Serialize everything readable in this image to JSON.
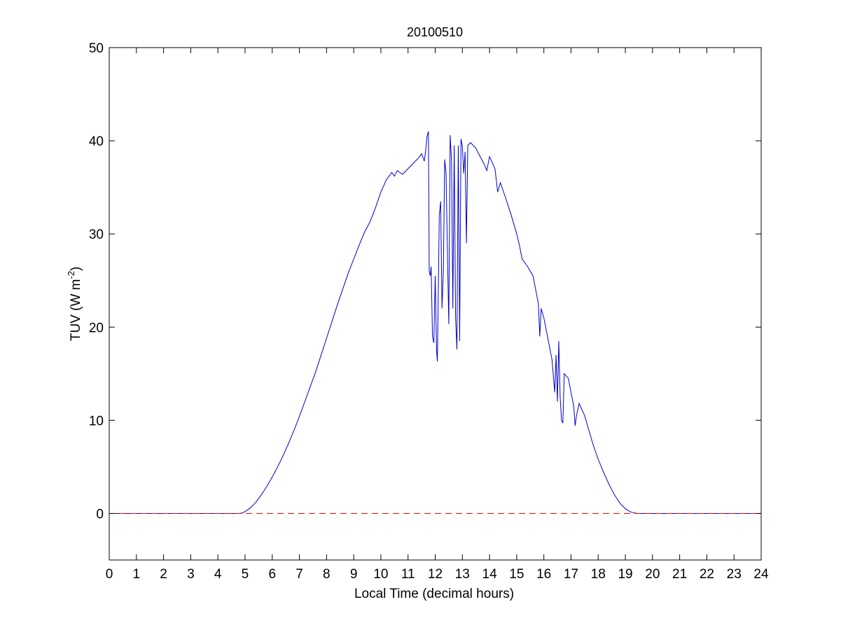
{
  "chart_data": {
    "type": "line",
    "title": "20100510",
    "xlabel": "Local Time (decimal hours)",
    "ylabel": {
      "main": "TUV (W m",
      "sup": "-2",
      "tail": ")"
    },
    "xlim": [
      0,
      24
    ],
    "ylim": [
      -5,
      50
    ],
    "xticks": [
      "0",
      "1",
      "2",
      "3",
      "4",
      "5",
      "6",
      "7",
      "8",
      "9",
      "10",
      "11",
      "12",
      "13",
      "14",
      "15",
      "16",
      "17",
      "18",
      "19",
      "20",
      "21",
      "22",
      "23",
      "24"
    ],
    "yticks": [
      "0",
      "10",
      "20",
      "30",
      "40",
      "50"
    ],
    "grid": false,
    "colors": {
      "series": "#0000cc",
      "baseline": "#ff0000",
      "axes": "#000000"
    },
    "series": [
      {
        "style": "solid",
        "points": [
          [
            0,
            0
          ],
          [
            4.8,
            0
          ],
          [
            4.9,
            0.05
          ],
          [
            5.0,
            0.2
          ],
          [
            5.2,
            0.6
          ],
          [
            5.4,
            1.2
          ],
          [
            5.6,
            2.0
          ],
          [
            5.8,
            2.9
          ],
          [
            6.0,
            3.9
          ],
          [
            6.2,
            5.0
          ],
          [
            6.4,
            6.2
          ],
          [
            6.6,
            7.5
          ],
          [
            6.8,
            8.9
          ],
          [
            7.0,
            10.4
          ],
          [
            7.2,
            12.0
          ],
          [
            7.4,
            13.6
          ],
          [
            7.6,
            15.2
          ],
          [
            7.8,
            17.0
          ],
          [
            8.0,
            18.8
          ],
          [
            8.2,
            20.6
          ],
          [
            8.4,
            22.4
          ],
          [
            8.6,
            24.1
          ],
          [
            8.8,
            25.8
          ],
          [
            9.0,
            27.3
          ],
          [
            9.2,
            28.8
          ],
          [
            9.4,
            30.2
          ],
          [
            9.6,
            31.3
          ],
          [
            9.8,
            32.8
          ],
          [
            10.0,
            34.5
          ],
          [
            10.2,
            35.8
          ],
          [
            10.4,
            36.6
          ],
          [
            10.5,
            36.2
          ],
          [
            10.6,
            36.8
          ],
          [
            10.8,
            36.4
          ],
          [
            11.0,
            37.0
          ],
          [
            11.2,
            37.6
          ],
          [
            11.4,
            38.2
          ],
          [
            11.5,
            38.6
          ],
          [
            11.6,
            37.8
          ],
          [
            11.65,
            39.0
          ],
          [
            11.7,
            40.5
          ],
          [
            11.75,
            41.0
          ],
          [
            11.78,
            26.0
          ],
          [
            11.82,
            25.5
          ],
          [
            11.85,
            26.5
          ],
          [
            11.9,
            19.0
          ],
          [
            11.95,
            18.3
          ],
          [
            12.0,
            25.5
          ],
          [
            12.05,
            17.5
          ],
          [
            12.08,
            16.3
          ],
          [
            12.15,
            32.0
          ],
          [
            12.2,
            33.5
          ],
          [
            12.25,
            22.0
          ],
          [
            12.3,
            26.0
          ],
          [
            12.35,
            38.0
          ],
          [
            12.4,
            36.5
          ],
          [
            12.45,
            28.0
          ],
          [
            12.5,
            20.3
          ],
          [
            12.55,
            40.6
          ],
          [
            12.6,
            38.0
          ],
          [
            12.65,
            22.0
          ],
          [
            12.7,
            39.5
          ],
          [
            12.75,
            21.0
          ],
          [
            12.8,
            17.6
          ],
          [
            12.85,
            39.5
          ],
          [
            12.9,
            18.5
          ],
          [
            12.95,
            40.2
          ],
          [
            13.0,
            39.4
          ],
          [
            13.05,
            36.5
          ],
          [
            13.1,
            38.8
          ],
          [
            13.15,
            29.0
          ],
          [
            13.2,
            39.5
          ],
          [
            13.3,
            39.8
          ],
          [
            13.5,
            39.2
          ],
          [
            13.6,
            38.6
          ],
          [
            13.8,
            37.5
          ],
          [
            13.9,
            36.8
          ],
          [
            14.0,
            38.3
          ],
          [
            14.2,
            37.0
          ],
          [
            14.3,
            34.5
          ],
          [
            14.4,
            35.5
          ],
          [
            14.6,
            33.8
          ],
          [
            14.8,
            32.0
          ],
          [
            15.0,
            30.0
          ],
          [
            15.1,
            28.8
          ],
          [
            15.2,
            27.3
          ],
          [
            15.4,
            26.5
          ],
          [
            15.6,
            25.5
          ],
          [
            15.8,
            22.5
          ],
          [
            15.85,
            19.0
          ],
          [
            15.9,
            22.0
          ],
          [
            16.0,
            21.0
          ],
          [
            16.2,
            18.0
          ],
          [
            16.3,
            16.5
          ],
          [
            16.4,
            13.0
          ],
          [
            16.45,
            17.0
          ],
          [
            16.5,
            12.0
          ],
          [
            16.55,
            18.5
          ],
          [
            16.6,
            12.5
          ],
          [
            16.65,
            10.0
          ],
          [
            16.7,
            9.7
          ],
          [
            16.75,
            15.0
          ],
          [
            16.9,
            14.5
          ],
          [
            17.0,
            13.0
          ],
          [
            17.1,
            11.5
          ],
          [
            17.15,
            9.4
          ],
          [
            17.2,
            10.5
          ],
          [
            17.3,
            11.8
          ],
          [
            17.5,
            10.5
          ],
          [
            17.8,
            7.5
          ],
          [
            18.0,
            5.8
          ],
          [
            18.2,
            4.4
          ],
          [
            18.4,
            3.1
          ],
          [
            18.6,
            2.0
          ],
          [
            18.8,
            1.1
          ],
          [
            19.0,
            0.5
          ],
          [
            19.2,
            0.15
          ],
          [
            19.4,
            0.02
          ],
          [
            19.5,
            0
          ],
          [
            24,
            0
          ]
        ]
      },
      {
        "style": "dashed",
        "points": [
          [
            0,
            0
          ],
          [
            24,
            0
          ]
        ]
      }
    ]
  }
}
